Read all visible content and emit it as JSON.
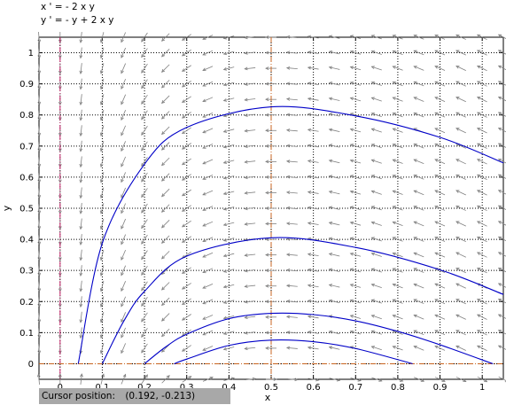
{
  "equations": {
    "line1": "x ' = - 2 x y",
    "line2": "y ' = - y + 2 x y"
  },
  "status": {
    "label": "Cursor position:",
    "value": "(0.192, -0.213)"
  },
  "colors": {
    "trajectory": "#0000c8",
    "arrow": "#808080",
    "grid": "#000000",
    "cursor_line": "#c86420",
    "axis_line": "#c8286e"
  },
  "chart_data": {
    "type": "line",
    "title": "",
    "xlabel": "x",
    "ylabel": "y",
    "xlim": [
      -0.05,
      1.05
    ],
    "ylim": [
      -0.05,
      1.05
    ],
    "xticks": [
      0,
      0.1,
      0.2,
      0.3,
      0.4,
      0.5,
      0.6,
      0.7,
      0.8,
      0.9,
      1
    ],
    "yticks": [
      0,
      0.1,
      0.2,
      0.3,
      0.4,
      0.5,
      0.6,
      0.7,
      0.8,
      0.9,
      1
    ],
    "xtick_labels": [
      "0",
      "0.1",
      "0.2",
      "0.3",
      "0.4",
      "0.5",
      "0.6",
      "0.7",
      "0.8",
      "0.9",
      "1"
    ],
    "ytick_labels": [
      "0",
      "0.1",
      "0.2",
      "0.3",
      "0.4",
      "0.5",
      "0.6",
      "0.7",
      "0.8",
      "0.9",
      "1"
    ],
    "grid": true,
    "cursor": {
      "x": 0.5
    },
    "direction_field": {
      "u": "-2*x*y",
      "v": "-y+2*x*y",
      "spacing": 0.05
    },
    "series": [
      {
        "x": [
          0.043,
          0.1,
          0.2,
          0.3,
          0.5,
          0.7,
          0.9,
          1.05
        ],
        "y": [
          0,
          0.388,
          0.642,
          0.76,
          0.826,
          0.797,
          0.728,
          0.646
        ]
      },
      {
        "x": [
          0.1,
          0.15,
          0.2,
          0.3,
          0.5,
          0.7,
          0.9,
          1.05
        ],
        "y": [
          0,
          0.135,
          0.233,
          0.346,
          0.405,
          0.374,
          0.302,
          0.223
        ]
      },
      {
        "x": [
          0.2,
          0.25,
          0.3,
          0.4,
          0.5,
          0.6,
          0.7,
          0.8,
          0.9,
          1.025
        ],
        "y": [
          0,
          0.054,
          0.095,
          0.145,
          0.162,
          0.158,
          0.138,
          0.104,
          0.061,
          0
        ]
      },
      {
        "x": [
          0.27,
          0.3,
          0.4,
          0.5,
          0.6,
          0.7,
          0.835
        ],
        "y": [
          0,
          0.015,
          0.059,
          0.076,
          0.071,
          0.049,
          0
        ]
      }
    ]
  }
}
